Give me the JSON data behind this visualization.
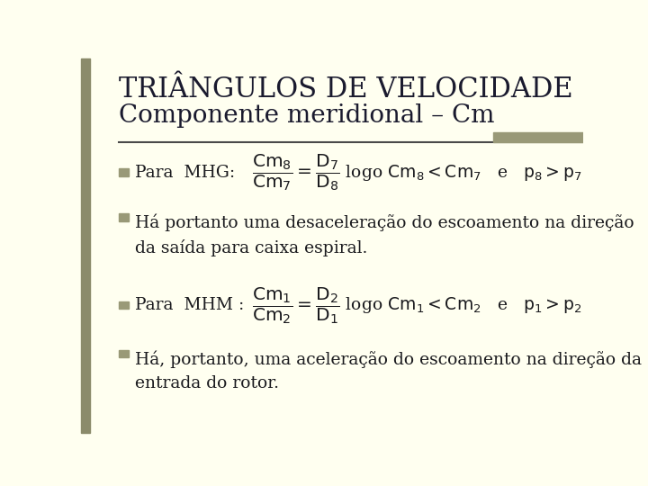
{
  "background_color": "#FFFFF0",
  "left_bar_color": "#8B8B6B",
  "title_line1": "TRIÂNGULOS DE VELOCIDADE",
  "title_line2": "Componente meridional – Cm",
  "title_color": "#1a1a2e",
  "title_fontsize": 22,
  "subtitle_fontsize": 20,
  "separator_color": "#4a4a4a",
  "bullet_color": "#999977",
  "text_color": "#1a1a1e",
  "body_fontsize": 13.5,
  "bullet1_text": "Para  MHG:",
  "bullet1_formula": "$\\dfrac{\\mathrm{Cm}_8}{\\mathrm{Cm}_7} = \\dfrac{\\mathrm{D}_7}{\\mathrm{D}_8}$",
  "bullet1_after": "  logo $\\mathrm{Cm}_8 < \\mathrm{Cm}_7$   e   $\\mathrm{p}_8 > \\mathrm{p}_7$",
  "bullet2_text": "Há portanto uma desaceleração do escoamento na direção\nda saída para caixa espiral.",
  "bullet3_text": "Para  MHM :",
  "bullet3_formula": "$\\dfrac{\\mathrm{Cm}_1}{\\mathrm{Cm}_2} = \\dfrac{\\mathrm{D}_2}{\\mathrm{D}_1}$",
  "bullet3_after": "  logo $\\mathrm{Cm}_1 < \\mathrm{Cm}_2$   e   $\\mathrm{p}_1 > \\mathrm{p}_2$",
  "bullet4_text": "Há, portanto, uma aceleração do escoamento na direção da\nentrada do rotor."
}
